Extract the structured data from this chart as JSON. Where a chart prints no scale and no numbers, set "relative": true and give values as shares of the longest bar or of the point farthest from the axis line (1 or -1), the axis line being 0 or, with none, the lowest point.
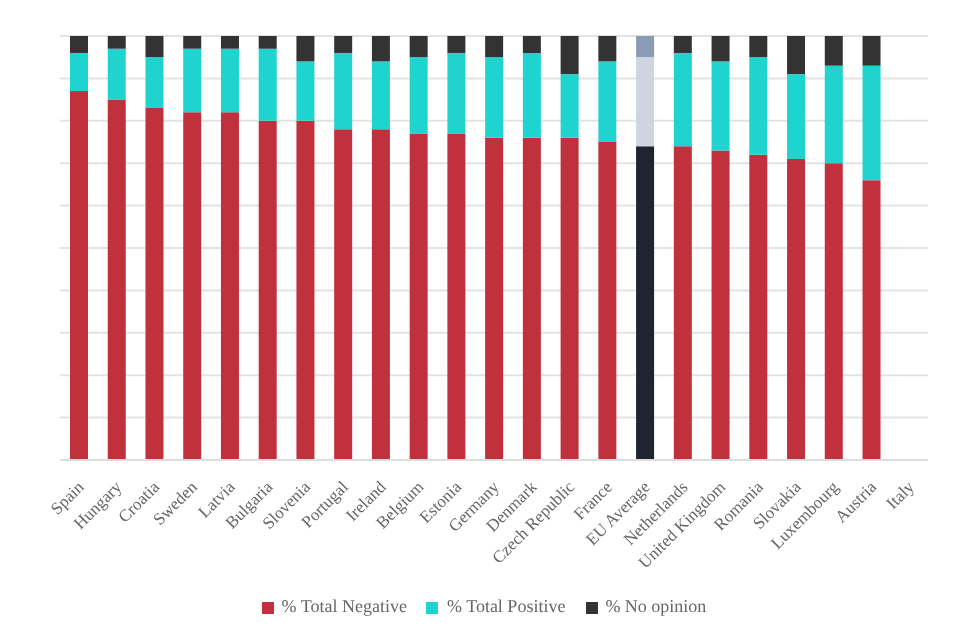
{
  "chart_data": {
    "type": "bar",
    "stacked": true,
    "relative": true,
    "grid": "y",
    "legend": "bottom",
    "categories": [
      "Spain",
      "Hungary",
      "Croatia",
      "Sweden",
      "Latvia",
      "Bulgaria",
      "Slovenia",
      "Portugal",
      "Ireland",
      "Belgium",
      "Estonia",
      "Germany",
      "Denmark",
      "Czech Republic",
      "France",
      "EU Average",
      "Netherlands",
      "United Kingdom",
      "Romania",
      "Slovakia",
      "Luxembourg",
      "Austria",
      "Italy"
    ],
    "series": [
      {
        "name": "% Total Negative",
        "color": "#c0313d",
        "colors": [
          "#c0313d",
          "#c0313d",
          "#c0313d",
          "#c0313d",
          "#c0313d",
          "#c0313d",
          "#c0313d",
          "#c0313d",
          "#c0313d",
          "#c0313d",
          "#c0313d",
          "#c0313d",
          "#c0313d",
          "#c0313d",
          "#c0313d",
          "#1e2430",
          "#c0313d",
          "#c0313d",
          "#c0313d",
          "#c0313d",
          "#c0313d",
          "#c0313d",
          "#c0313d"
        ],
        "values": [
          0.87,
          0.85,
          0.83,
          0.82,
          0.82,
          0.8,
          0.8,
          0.78,
          0.78,
          0.77,
          0.77,
          0.76,
          0.76,
          0.76,
          0.75,
          0.74,
          0.74,
          0.73,
          0.72,
          0.71,
          0.7,
          0.66,
          null
        ]
      },
      {
        "name": "% Total Positive",
        "color": "#1fd3cf",
        "colors": [
          "#1fd3cf",
          "#1fd3cf",
          "#1fd3cf",
          "#1fd3cf",
          "#1fd3cf",
          "#1fd3cf",
          "#1fd3cf",
          "#1fd3cf",
          "#1fd3cf",
          "#1fd3cf",
          "#1fd3cf",
          "#1fd3cf",
          "#1fd3cf",
          "#1fd3cf",
          "#1fd3cf",
          "#cfd5e0",
          "#1fd3cf",
          "#1fd3cf",
          "#1fd3cf",
          "#1fd3cf",
          "#1fd3cf",
          "#1fd3cf",
          "#1fd3cf"
        ],
        "values": [
          0.09,
          0.12,
          0.12,
          0.15,
          0.15,
          0.17,
          0.14,
          0.18,
          0.16,
          0.18,
          0.19,
          0.19,
          0.2,
          0.15,
          0.19,
          0.21,
          0.22,
          0.21,
          0.23,
          0.2,
          0.23,
          0.27,
          null
        ]
      },
      {
        "name": "% No opinion",
        "color": "#333333",
        "colors": [
          "#333333",
          "#333333",
          "#333333",
          "#333333",
          "#333333",
          "#333333",
          "#333333",
          "#333333",
          "#333333",
          "#333333",
          "#333333",
          "#333333",
          "#333333",
          "#333333",
          "#333333",
          "#8a9bb5",
          "#333333",
          "#333333",
          "#333333",
          "#333333",
          "#333333",
          "#333333",
          "#333333"
        ],
        "values": [
          0.04,
          0.03,
          0.05,
          0.03,
          0.03,
          0.03,
          0.06,
          0.04,
          0.06,
          0.05,
          0.04,
          0.05,
          0.04,
          0.09,
          0.06,
          0.05,
          0.04,
          0.06,
          0.05,
          0.09,
          0.07,
          0.07,
          null
        ]
      }
    ]
  }
}
